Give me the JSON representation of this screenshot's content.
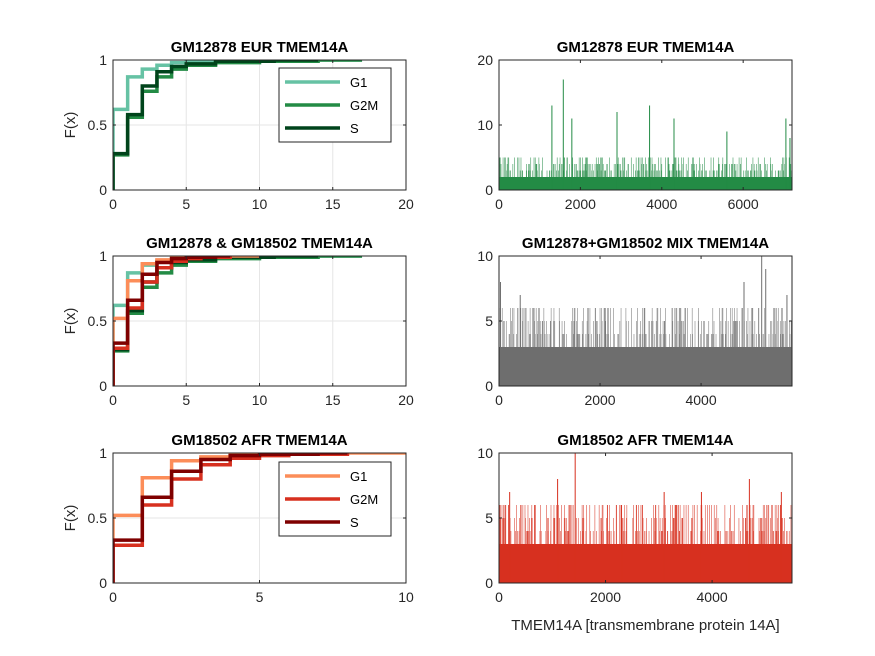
{
  "chart_data": [
    {
      "type": "line",
      "subtype": "empirical-cdf-step",
      "title": "GM12878 EUR TMEM14A",
      "xlabel": "",
      "ylabel": "F(x)",
      "xlim": [
        0,
        20
      ],
      "ylim": [
        0,
        1
      ],
      "xticks": [
        "0",
        "5",
        "10",
        "15",
        "20"
      ],
      "yticks": [
        "0",
        "0.5",
        "1"
      ],
      "grid": true,
      "legend": "top-right",
      "series": [
        {
          "name": "G1",
          "color": "#66c2a4",
          "x": [
            0,
            1,
            2,
            3,
            4,
            5,
            8,
            11,
            17
          ],
          "y": [
            0.62,
            0.87,
            0.93,
            0.96,
            0.98,
            0.99,
            0.995,
            1.0,
            1.0
          ]
        },
        {
          "name": "G2M",
          "color": "#238b45",
          "x": [
            0,
            1,
            2,
            3,
            4,
            5,
            7,
            10,
            14,
            17
          ],
          "y": [
            0.27,
            0.56,
            0.76,
            0.87,
            0.93,
            0.96,
            0.98,
            0.99,
            1.0,
            1.0
          ]
        },
        {
          "name": "S",
          "color": "#00441b",
          "x": [
            0,
            1,
            2,
            3,
            4,
            5,
            7,
            11,
            14
          ],
          "y": [
            0.28,
            0.58,
            0.8,
            0.91,
            0.95,
            0.97,
            0.99,
            1.0,
            1.0
          ]
        }
      ]
    },
    {
      "type": "bar",
      "subtype": "per-cell-counts",
      "title": "GM12878 EUR TMEM14A",
      "color": "#238b45",
      "xlim": [
        0,
        7200
      ],
      "ylim": [
        0,
        20
      ],
      "xticks": [
        "0",
        "2000",
        "4000",
        "6000"
      ],
      "yticks": [
        "0",
        "10",
        "20"
      ],
      "n_cells": 7200,
      "baseline_max": 2,
      "notable_spikes": [
        [
          1580,
          17
        ],
        [
          3700,
          13
        ],
        [
          1300,
          13
        ],
        [
          2900,
          12
        ],
        [
          1790,
          11
        ],
        [
          7050,
          11
        ],
        [
          4300,
          11
        ],
        [
          7150,
          8
        ],
        [
          5600,
          9
        ]
      ]
    },
    {
      "type": "line",
      "subtype": "empirical-cdf-step",
      "title": "GM12878 & GM18502 TMEM14A",
      "xlabel": "",
      "ylabel": "F(x)",
      "xlim": [
        0,
        20
      ],
      "ylim": [
        0,
        1
      ],
      "xticks": [
        "0",
        "5",
        "10",
        "15",
        "20"
      ],
      "yticks": [
        "0",
        "0.5",
        "1"
      ],
      "grid": true,
      "series": [
        {
          "color": "#66c2a4",
          "x": [
            0,
            1,
            2,
            3,
            4,
            5,
            8,
            11,
            17
          ],
          "y": [
            0.62,
            0.87,
            0.93,
            0.96,
            0.98,
            0.99,
            0.995,
            1.0,
            1.0
          ]
        },
        {
          "color": "#238b45",
          "x": [
            0,
            1,
            2,
            3,
            4,
            5,
            7,
            10,
            14,
            17
          ],
          "y": [
            0.27,
            0.56,
            0.76,
            0.87,
            0.93,
            0.96,
            0.98,
            0.99,
            1.0,
            1.0
          ]
        },
        {
          "color": "#00441b",
          "x": [
            0,
            1,
            2,
            3,
            4,
            5,
            7,
            11,
            14
          ],
          "y": [
            0.28,
            0.58,
            0.8,
            0.91,
            0.95,
            0.97,
            0.99,
            1.0,
            1.0
          ]
        },
        {
          "color": "#fc8d59",
          "x": [
            0,
            1,
            2,
            3,
            4,
            5,
            8,
            10
          ],
          "y": [
            0.52,
            0.81,
            0.94,
            0.97,
            0.99,
            0.995,
            1.0,
            1.0
          ]
        },
        {
          "color": "#d7301f",
          "x": [
            0,
            1,
            2,
            3,
            4,
            5,
            6,
            8
          ],
          "y": [
            0.29,
            0.6,
            0.8,
            0.91,
            0.96,
            0.98,
            0.99,
            1.0
          ]
        },
        {
          "color": "#7f0000",
          "x": [
            0,
            1,
            2,
            3,
            4,
            5,
            7,
            8
          ],
          "y": [
            0.33,
            0.66,
            0.86,
            0.95,
            0.98,
            0.99,
            1.0,
            1.0
          ]
        }
      ]
    },
    {
      "type": "bar",
      "subtype": "per-cell-counts",
      "title": "GM12878+GM18502 MIX TMEM14A",
      "color": "#6e6e6e",
      "xlim": [
        0,
        5800
      ],
      "ylim": [
        0,
        10
      ],
      "xticks": [
        "0",
        "2000",
        "4000"
      ],
      "yticks": [
        "0",
        "5",
        "10"
      ],
      "n_cells": 5800,
      "baseline_max": 3,
      "notable_spikes": [
        [
          5200,
          10
        ],
        [
          30,
          8
        ],
        [
          4850,
          8
        ],
        [
          5280,
          9
        ],
        [
          420,
          7
        ],
        [
          5700,
          7
        ],
        [
          2100,
          6
        ]
      ]
    },
    {
      "type": "line",
      "subtype": "empirical-cdf-step",
      "title": "GM18502 AFR TMEM14A",
      "xlabel": "",
      "ylabel": "F(x)",
      "xlim": [
        0,
        10
      ],
      "ylim": [
        0,
        1
      ],
      "xticks": [
        "0",
        "5",
        "10"
      ],
      "yticks": [
        "0",
        "0.5",
        "1"
      ],
      "grid": true,
      "legend": "top-right",
      "series": [
        {
          "name": "G1",
          "color": "#fc8d59",
          "x": [
            0,
            1,
            2,
            3,
            4,
            5,
            8,
            10
          ],
          "y": [
            0.52,
            0.81,
            0.94,
            0.97,
            0.99,
            0.995,
            1.0,
            1.0
          ]
        },
        {
          "name": "G2M",
          "color": "#d7301f",
          "x": [
            0,
            1,
            2,
            3,
            4,
            5,
            6,
            8
          ],
          "y": [
            0.29,
            0.6,
            0.8,
            0.91,
            0.96,
            0.98,
            0.99,
            1.0
          ]
        },
        {
          "name": "S",
          "color": "#7f0000",
          "x": [
            0,
            1,
            2,
            3,
            4,
            5,
            7,
            8
          ],
          "y": [
            0.33,
            0.66,
            0.86,
            0.95,
            0.98,
            0.99,
            1.0,
            1.0
          ]
        }
      ]
    },
    {
      "type": "bar",
      "subtype": "per-cell-counts",
      "title": "GM18502 AFR TMEM14A",
      "xlabel": "TMEM14A [transmembrane protein 14A]",
      "color": "#d7301f",
      "xlim": [
        0,
        5500
      ],
      "ylim": [
        0,
        10
      ],
      "xticks": [
        "0",
        "2000",
        "4000"
      ],
      "yticks": [
        "0",
        "5",
        "10"
      ],
      "n_cells": 5500,
      "baseline_max": 3,
      "notable_spikes": [
        [
          1430,
          10
        ],
        [
          1100,
          8
        ],
        [
          4700,
          8
        ],
        [
          3100,
          7
        ],
        [
          3800,
          7
        ],
        [
          200,
          7
        ],
        [
          5300,
          7
        ],
        [
          2300,
          6
        ]
      ]
    }
  ]
}
